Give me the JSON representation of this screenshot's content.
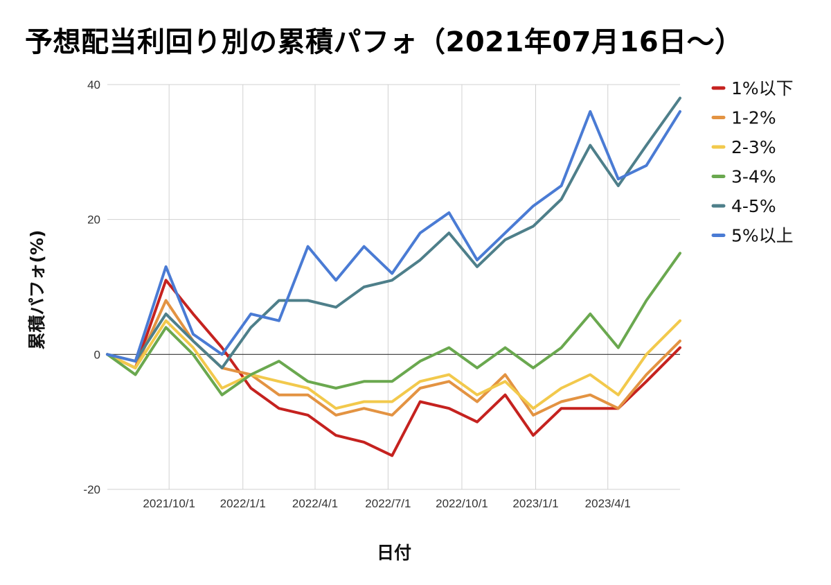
{
  "chart_data": {
    "type": "line",
    "title": "予想配当利回り別の累積パフォ（2021年07月16日〜）",
    "xlabel": "日付",
    "ylabel": "累積パフォ(%)",
    "ylim": [
      -20,
      40
    ],
    "y_ticks": [
      "40",
      "20",
      "0",
      "-20"
    ],
    "x_range": [
      "2021-07-16",
      "2023-06-30"
    ],
    "x_ticks": [
      {
        "date": "2021-10-01",
        "label": "2021/10/1"
      },
      {
        "date": "2022-01-01",
        "label": "2022/1/1"
      },
      {
        "date": "2022-04-01",
        "label": "2022/4/1"
      },
      {
        "date": "2022-07-01",
        "label": "2022/7/1"
      },
      {
        "date": "2022-10-01",
        "label": "2022/10/1"
      },
      {
        "date": "2023-01-01",
        "label": "2023/1/1"
      },
      {
        "date": "2023-04-01",
        "label": "2023/4/1"
      }
    ],
    "grid": true,
    "legend_position": "right",
    "x": [
      "2021-07-16",
      "2021-08-20",
      "2021-09-27",
      "2021-10-31",
      "2021-12-06",
      "2022-01-11",
      "2022-02-15",
      "2022-03-23",
      "2022-04-27",
      "2022-06-01",
      "2022-07-06",
      "2022-08-10",
      "2022-09-15",
      "2022-10-20",
      "2022-11-24",
      "2022-12-29",
      "2023-02-02",
      "2023-03-10",
      "2023-04-14",
      "2023-05-19",
      "2023-06-30"
    ],
    "series": [
      {
        "name": "1%以下",
        "color": "#c5221f",
        "values": [
          0,
          -2,
          11,
          6,
          1,
          -5,
          -8,
          -9,
          -12,
          -13,
          -15,
          -7,
          -8,
          -10,
          -6,
          -12,
          -8,
          -8,
          -8,
          -4,
          1
        ]
      },
      {
        "name": "1-2%",
        "color": "#e39342",
        "values": [
          0,
          -2,
          8,
          2,
          -2,
          -3,
          -6,
          -6,
          -9,
          -8,
          -9,
          -5,
          -4,
          -7,
          -3,
          -9,
          -7,
          -6,
          -8,
          -3,
          2
        ]
      },
      {
        "name": "2-3%",
        "color": "#f2c94c",
        "values": [
          0,
          -2,
          5,
          1,
          -5,
          -3,
          -4,
          -5,
          -8,
          -7,
          -7,
          -4,
          -3,
          -6,
          -4,
          -8,
          -5,
          -3,
          -6,
          0,
          5
        ]
      },
      {
        "name": "3-4%",
        "color": "#6aa84f",
        "values": [
          0,
          -3,
          4,
          0,
          -6,
          -3,
          -1,
          -4,
          -5,
          -4,
          -4,
          -1,
          1,
          -2,
          1,
          -2,
          1,
          6,
          1,
          8,
          15
        ]
      },
      {
        "name": "4-5%",
        "color": "#4e7f8a",
        "values": [
          0,
          -1,
          6,
          2,
          -2,
          4,
          8,
          8,
          7,
          10,
          11,
          14,
          18,
          13,
          17,
          19,
          23,
          31,
          25,
          31,
          38
        ]
      },
      {
        "name": "5%以上",
        "color": "#4a7bd4",
        "values": [
          0,
          -1,
          13,
          3,
          0,
          6,
          5,
          16,
          11,
          16,
          12,
          18,
          21,
          14,
          18,
          22,
          25,
          36,
          26,
          28,
          36
        ]
      }
    ]
  }
}
